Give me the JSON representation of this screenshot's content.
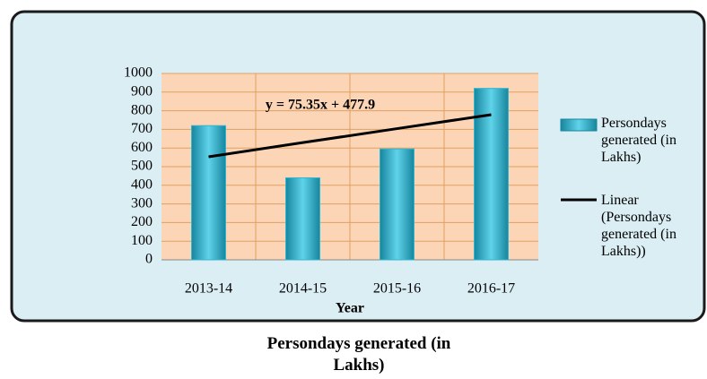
{
  "chart_data": {
    "type": "bar",
    "title": "Persondays generated (in Lakhs)",
    "x_label": "Year",
    "annotation": "y = 75.35x + 477.9",
    "categories": [
      "2013-14",
      "2014-15",
      "2015-16",
      "2016-17"
    ],
    "series": [
      {
        "name": "Persondays generated (in Lakhs)",
        "color": "#31b6d1",
        "values": [
          720,
          440,
          595,
          920
        ]
      }
    ],
    "trendline": {
      "name": "Linear (Persondays generated (in Lakhs))",
      "color": "#000000",
      "values": [
        553,
        629,
        704,
        779
      ]
    },
    "ylim": [
      0,
      1000
    ],
    "yticks": [
      0,
      100,
      200,
      300,
      400,
      500,
      600,
      700,
      800,
      900,
      1000
    ],
    "grid": true,
    "legend": "right"
  }
}
